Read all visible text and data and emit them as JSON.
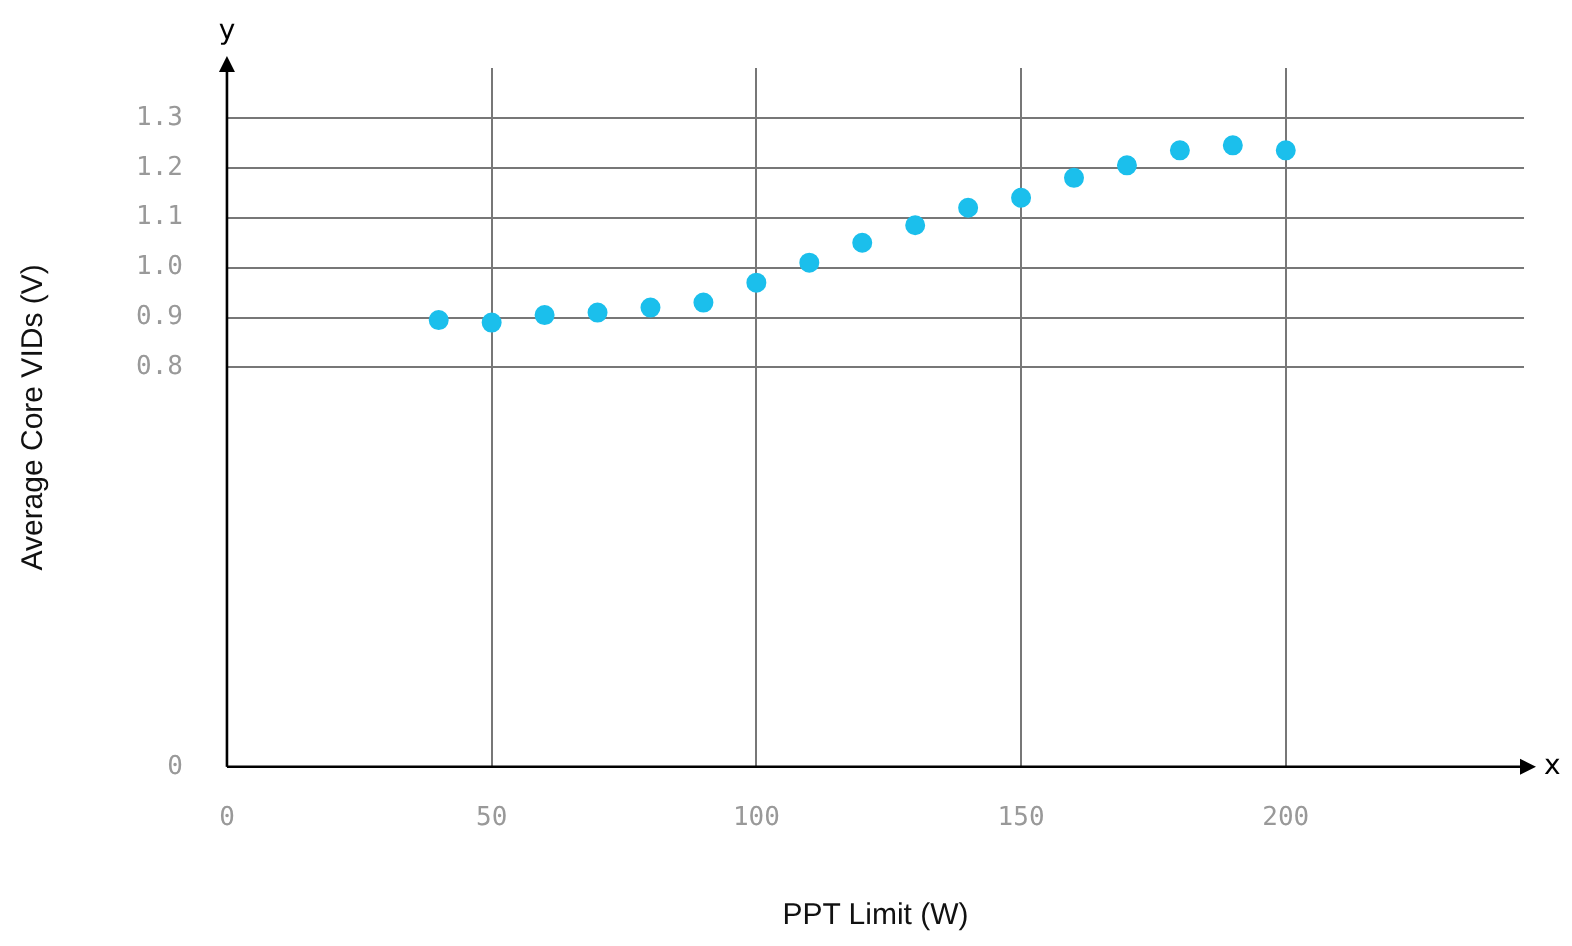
{
  "chart_data": {
    "type": "scatter",
    "xlabel": "PPT Limit (W)",
    "ylabel": "Average Core VIDs (V)",
    "x": [
      40,
      50,
      60,
      70,
      80,
      90,
      100,
      110,
      120,
      130,
      140,
      150,
      160,
      170,
      180,
      190,
      200
    ],
    "series": [
      {
        "color": "#1bbfec",
        "values": [
          0.895,
          0.89,
          0.905,
          0.91,
          0.92,
          0.93,
          0.97,
          1.01,
          1.05,
          1.085,
          1.12,
          1.14,
          1.18,
          1.205,
          1.235,
          1.245,
          1.235
        ]
      }
    ],
    "xlim": [
      0,
      245
    ],
    "xticks": [
      0,
      50,
      100,
      150,
      200
    ],
    "ylim": [
      0,
      1.4
    ],
    "yticks": [
      0,
      {
        "value": 0.8,
        "label": "0.8"
      },
      {
        "value": 0.9,
        "label": "0.9"
      },
      {
        "value": 1.0,
        "label": "1.0"
      },
      {
        "value": 1.1,
        "label": "1.1"
      },
      {
        "value": 1.2,
        "label": "1.2"
      },
      {
        "value": 1.3,
        "label": "1.3"
      }
    ],
    "grid": true,
    "legend": false,
    "marker": "circle",
    "annotations": [
      "x",
      "y"
    ]
  }
}
